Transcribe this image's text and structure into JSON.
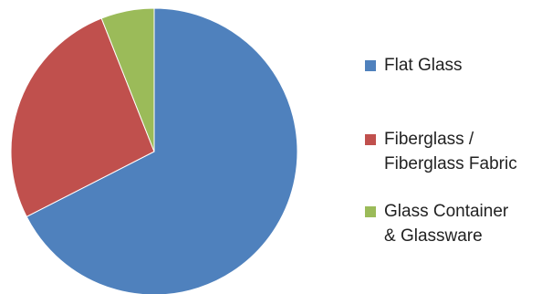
{
  "chart_data": {
    "type": "pie",
    "title": "",
    "categories": [
      "Flat Glass",
      "Fiberglass /\nFiberglass Fabric",
      "Glass Container\n& Glassware"
    ],
    "values": [
      67.5,
      26.5,
      6.0
    ],
    "colors": [
      "#4F81BD",
      "#C0504D",
      "#9BBB59"
    ],
    "start_angle_deg": 0,
    "direction": "clockwise",
    "legend_position": "right"
  }
}
